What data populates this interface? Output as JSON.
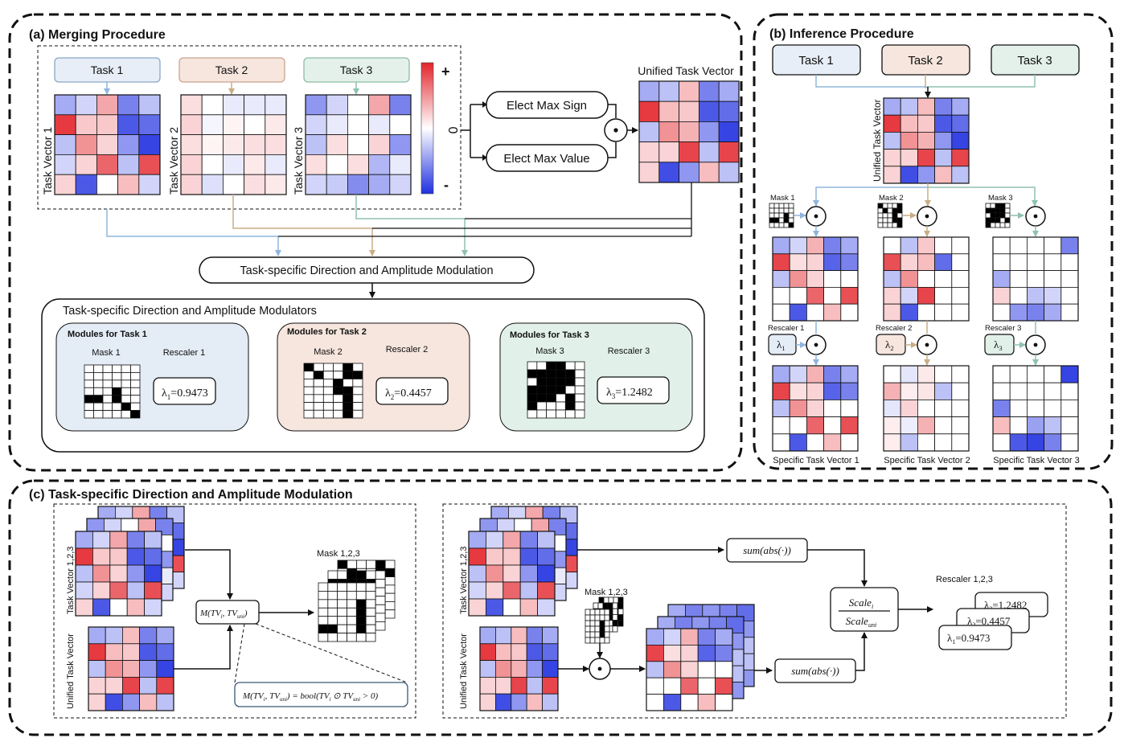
{
  "panel_a": {
    "title": "(a) Merging Procedure",
    "tasks": [
      "Task 1",
      "Task 2",
      "Task 3"
    ],
    "vector_labels": [
      "Task Vector 1",
      "Task Vector 2",
      "Task Vector 3"
    ],
    "colorbar": {
      "plus": "+",
      "zero": "0",
      "minus": "-"
    },
    "elect_sign": "Elect Max Sign",
    "elect_value": "Elect Max Value",
    "odot": "⊙",
    "unified_label": "Unified Task Vector",
    "modulation_label": "Task-specific Direction and Amplitude Modulation",
    "modulators_title": "Task-specific Direction and Amplitude Modulators",
    "modules": [
      {
        "title": "Modules for Task 1",
        "mask_label": "Mask 1",
        "rescaler_label": "Rescaler 1",
        "lambda_sym": "λ",
        "lambda_sub": "1",
        "lambda_val": "=0.9473"
      },
      {
        "title": "Modules for Task 2",
        "mask_label": "Mask 2",
        "rescaler_label": "Rescaler 2",
        "lambda_sym": "λ",
        "lambda_sub": "2",
        "lambda_val": "=0.4457"
      },
      {
        "title": "Modules for Task 3",
        "mask_label": "Mask 3",
        "rescaler_label": "Rescaler 3",
        "lambda_sym": "λ",
        "lambda_sub": "3",
        "lambda_val": "=1.2482"
      }
    ]
  },
  "panel_b": {
    "title": "(b) Inference Procedure",
    "tasks": [
      "Task 1",
      "Task 2",
      "Task 3"
    ],
    "unified_label": "Unified Task Vector",
    "masks": [
      "Mask 1",
      "Mask 2",
      "Mask 3"
    ],
    "rescalers": [
      "Rescaler 1",
      "Rescaler 2",
      "Rescaler 3"
    ],
    "lambda_sym": "λ",
    "lambda_subs": [
      "1",
      "2",
      "3"
    ],
    "specific": [
      "Specific Task Vector 1",
      "Specific Task Vector 2",
      "Specific Task Vector 3"
    ]
  },
  "panel_c": {
    "title": "(c) Task-specific Direction and Amplitude Modulation",
    "tv_label": "Task Vector 1,2,3",
    "uni_label": "Unified Task Vector",
    "mask_label": "Mask 1,2,3",
    "m_func": "M(TV",
    "m_func_sub_i": "i",
    "m_func_mid": ", TV",
    "m_func_sub_uni": "uni",
    "m_func_close": ")",
    "m_def_left": "M(TV",
    "m_def_eq": ") = bool(TV",
    "m_def_odot": " ⊙ TV",
    "m_def_end": " > 0)",
    "sum_abs": "sum(abs(·))",
    "scale_num": "Scale",
    "scale_num_sub": "i",
    "scale_den": "Scale",
    "scale_den_sub": "uni",
    "rescaler_label": "Rescaler 1,2,3",
    "lambdas": [
      {
        "sym": "λ",
        "sub": "3",
        "val": "=1.2482"
      },
      {
        "sym": "λ",
        "sub": "2",
        "val": "=0.4457"
      },
      {
        "sym": "λ",
        "sub": "1",
        "val": "=0.9473"
      }
    ]
  },
  "colors": {
    "task1_fill": "#e7eef7",
    "task1_stroke": "#8aa6c8",
    "task1_line": "#8fb5dc",
    "task2_fill": "#f6e6de",
    "task2_stroke": "#c9a48f",
    "task2_line": "#c8ad86",
    "task3_fill": "#e3f1ea",
    "task3_stroke": "#8dbca6",
    "task3_line": "#8fc1b1",
    "mod1_fill": "#e4ecf6",
    "mod2_fill": "#f6e6de",
    "mod3_fill": "#e1f1e9",
    "red": "#e3242b",
    "blue": "#1f2fe0"
  },
  "heatmaps": {
    "tv1": [
      [
        -0.4,
        -0.2,
        0.4,
        -0.6,
        -0.3
      ],
      [
        0.9,
        0.25,
        0.25,
        -0.8,
        -0.7
      ],
      [
        -0.3,
        0.5,
        0.2,
        -0.5,
        -0.9
      ],
      [
        -0.2,
        0.2,
        0.7,
        -0.3,
        0.8
      ],
      [
        0.2,
        -0.8,
        0.0,
        0.3,
        -0.2
      ]
    ],
    "tv2": [
      [
        0.15,
        0.0,
        -0.1,
        -0.1,
        -0.1
      ],
      [
        0.2,
        -0.05,
        0.05,
        0.0,
        0.1
      ],
      [
        0.15,
        0.05,
        0.1,
        0.15,
        0.15
      ],
      [
        0.2,
        0.0,
        -0.1,
        0.1,
        -0.1
      ],
      [
        0.2,
        -0.15,
        0.0,
        0.15,
        0.1
      ]
    ],
    "tv3": [
      [
        -0.5,
        -0.2,
        0.0,
        0.4,
        -0.6
      ],
      [
        -0.2,
        -0.1,
        0.0,
        -0.1,
        0.0
      ],
      [
        -0.3,
        0.15,
        0.0,
        0.2,
        -0.5
      ],
      [
        0.15,
        0.0,
        0.15,
        -0.35,
        -0.1
      ],
      [
        -0.2,
        -0.25,
        -0.55,
        -0.4,
        -0.2
      ]
    ],
    "uni": [
      [
        -0.4,
        -0.3,
        0.3,
        -0.6,
        -0.4
      ],
      [
        0.9,
        0.3,
        0.25,
        -0.8,
        -0.7
      ],
      [
        -0.3,
        0.5,
        0.35,
        -0.5,
        -0.9
      ],
      [
        0.2,
        0.2,
        0.85,
        -0.3,
        0.85
      ],
      [
        0.2,
        -0.85,
        -0.5,
        0.3,
        -0.3
      ]
    ],
    "s1": [
      [
        -0.4,
        -0.2,
        0.35,
        -0.6,
        -0.4
      ],
      [
        0.85,
        0.15,
        0.2,
        -0.75,
        -0.6
      ],
      [
        -0.3,
        0.5,
        0.2,
        0.0,
        0.0
      ],
      [
        0.0,
        0.0,
        0.7,
        0.0,
        0.8
      ],
      [
        0.0,
        -0.8,
        0.0,
        0.3,
        0.0
      ]
    ],
    "s2": [
      [
        0.0,
        -0.3,
        0.25,
        0.0,
        0.0
      ],
      [
        0.8,
        0.2,
        0.3,
        -0.7,
        0.0
      ],
      [
        -0.3,
        0.5,
        0.0,
        0.0,
        0.0
      ],
      [
        0.2,
        -0.2,
        0.85,
        0.0,
        0.0
      ],
      [
        0.2,
        -0.8,
        0.0,
        0.0,
        0.0
      ]
    ],
    "s3": [
      [
        0.0,
        0.0,
        0.0,
        0.0,
        -0.6
      ],
      [
        0.0,
        0.0,
        0.0,
        0.0,
        0.0
      ],
      [
        -0.4,
        0.0,
        0.0,
        0.0,
        0.0
      ],
      [
        0.2,
        0.0,
        -0.3,
        -0.2,
        0.0
      ],
      [
        0.0,
        -0.5,
        -0.6,
        -0.4,
        0.0
      ]
    ],
    "r1": [
      [
        -0.4,
        -0.2,
        0.35,
        -0.6,
        -0.4
      ],
      [
        0.85,
        0.15,
        0.2,
        -0.75,
        -0.6
      ],
      [
        -0.3,
        0.5,
        0.2,
        0.0,
        0.0
      ],
      [
        0.0,
        0.0,
        0.7,
        0.0,
        0.8
      ],
      [
        0.0,
        -0.8,
        0.0,
        0.3,
        0.0
      ]
    ],
    "r2": [
      [
        0.0,
        -0.12,
        0.1,
        0.0,
        0.0
      ],
      [
        0.35,
        0.08,
        0.12,
        -0.3,
        0.0
      ],
      [
        -0.12,
        0.2,
        0.0,
        0.0,
        0.0
      ],
      [
        0.08,
        -0.08,
        0.35,
        0.0,
        0.0
      ],
      [
        0.08,
        -0.3,
        0.0,
        0.0,
        0.0
      ]
    ],
    "r3": [
      [
        0.0,
        0.0,
        0.0,
        0.0,
        -0.9
      ],
      [
        0.0,
        0.0,
        0.0,
        0.0,
        0.0
      ],
      [
        -0.6,
        0.0,
        0.0,
        0.0,
        0.0
      ],
      [
        0.3,
        0.0,
        -0.45,
        -0.3,
        0.0
      ],
      [
        0.0,
        -0.8,
        -0.9,
        -0.6,
        0.0
      ]
    ],
    "blue_grid": [
      [
        -0.4,
        -0.6,
        -0.5,
        -0.6,
        -0.7
      ],
      [
        -0.3,
        -0.2,
        -0.4,
        -0.3,
        -0.5
      ],
      [
        -0.2,
        -0.4,
        -0.3,
        -0.2,
        -0.3
      ],
      [
        -0.3,
        -0.2,
        -0.4,
        -0.5,
        -0.3
      ],
      [
        -0.2,
        -0.3,
        -0.2,
        -0.4,
        -0.5
      ]
    ]
  },
  "masks": {
    "m1": [
      [
        0,
        0,
        0,
        0,
        0,
        0
      ],
      [
        0,
        0,
        0,
        0,
        0,
        0
      ],
      [
        0,
        0,
        0,
        0,
        0,
        0
      ],
      [
        0,
        0,
        0,
        1,
        0,
        0
      ],
      [
        1,
        1,
        0,
        1,
        0,
        0
      ],
      [
        0,
        0,
        0,
        0,
        1,
        0
      ],
      [
        0,
        0,
        0,
        0,
        0,
        1
      ]
    ],
    "m2": [
      [
        1,
        0,
        0,
        0,
        1,
        0
      ],
      [
        0,
        1,
        0,
        0,
        1,
        1
      ],
      [
        0,
        0,
        0,
        1,
        0,
        0
      ],
      [
        0,
        0,
        0,
        1,
        1,
        0
      ],
      [
        0,
        0,
        0,
        0,
        1,
        0
      ],
      [
        0,
        0,
        0,
        0,
        1,
        0
      ],
      [
        0,
        0,
        0,
        0,
        1,
        0
      ]
    ],
    "m3": [
      [
        0,
        0,
        1,
        1,
        0,
        0
      ],
      [
        1,
        1,
        1,
        1,
        1,
        0
      ],
      [
        0,
        1,
        1,
        1,
        1,
        0
      ],
      [
        1,
        1,
        1,
        1,
        0,
        0
      ],
      [
        1,
        1,
        1,
        0,
        1,
        0
      ],
      [
        1,
        0,
        0,
        0,
        1,
        0
      ],
      [
        0,
        0,
        0,
        0,
        0,
        0
      ]
    ],
    "small1": [
      [
        0,
        0,
        0,
        0,
        0
      ],
      [
        0,
        0,
        0,
        0,
        0
      ],
      [
        0,
        0,
        0,
        1,
        0
      ],
      [
        1,
        1,
        0,
        1,
        0
      ],
      [
        0,
        0,
        0,
        0,
        1
      ]
    ],
    "small2": [
      [
        1,
        0,
        0,
        0,
        1
      ],
      [
        0,
        1,
        0,
        1,
        1
      ],
      [
        0,
        0,
        0,
        1,
        0
      ],
      [
        0,
        0,
        0,
        1,
        1
      ],
      [
        0,
        0,
        0,
        0,
        1
      ]
    ],
    "small3": [
      [
        0,
        0,
        1,
        1,
        0
      ],
      [
        1,
        1,
        1,
        1,
        0
      ],
      [
        0,
        1,
        1,
        1,
        0
      ],
      [
        1,
        1,
        1,
        0,
        1
      ],
      [
        1,
        0,
        0,
        0,
        0
      ]
    ],
    "c_mask": [
      [
        0,
        0,
        0,
        0,
        0,
        0
      ],
      [
        0,
        0,
        0,
        0,
        0,
        0
      ],
      [
        0,
        0,
        0,
        0,
        1,
        0
      ],
      [
        0,
        0,
        0,
        0,
        1,
        0
      ],
      [
        0,
        0,
        0,
        0,
        1,
        0
      ],
      [
        1,
        1,
        0,
        0,
        1,
        0
      ],
      [
        0,
        0,
        0,
        0,
        0,
        0
      ]
    ],
    "c_mask_small": [
      [
        0,
        0,
        0,
        0,
        0
      ],
      [
        0,
        0,
        0,
        0,
        0
      ],
      [
        0,
        0,
        0,
        1,
        0
      ],
      [
        0,
        0,
        0,
        1,
        0
      ],
      [
        0,
        0,
        0,
        1,
        0
      ],
      [
        0,
        0,
        0,
        0,
        0
      ]
    ]
  }
}
